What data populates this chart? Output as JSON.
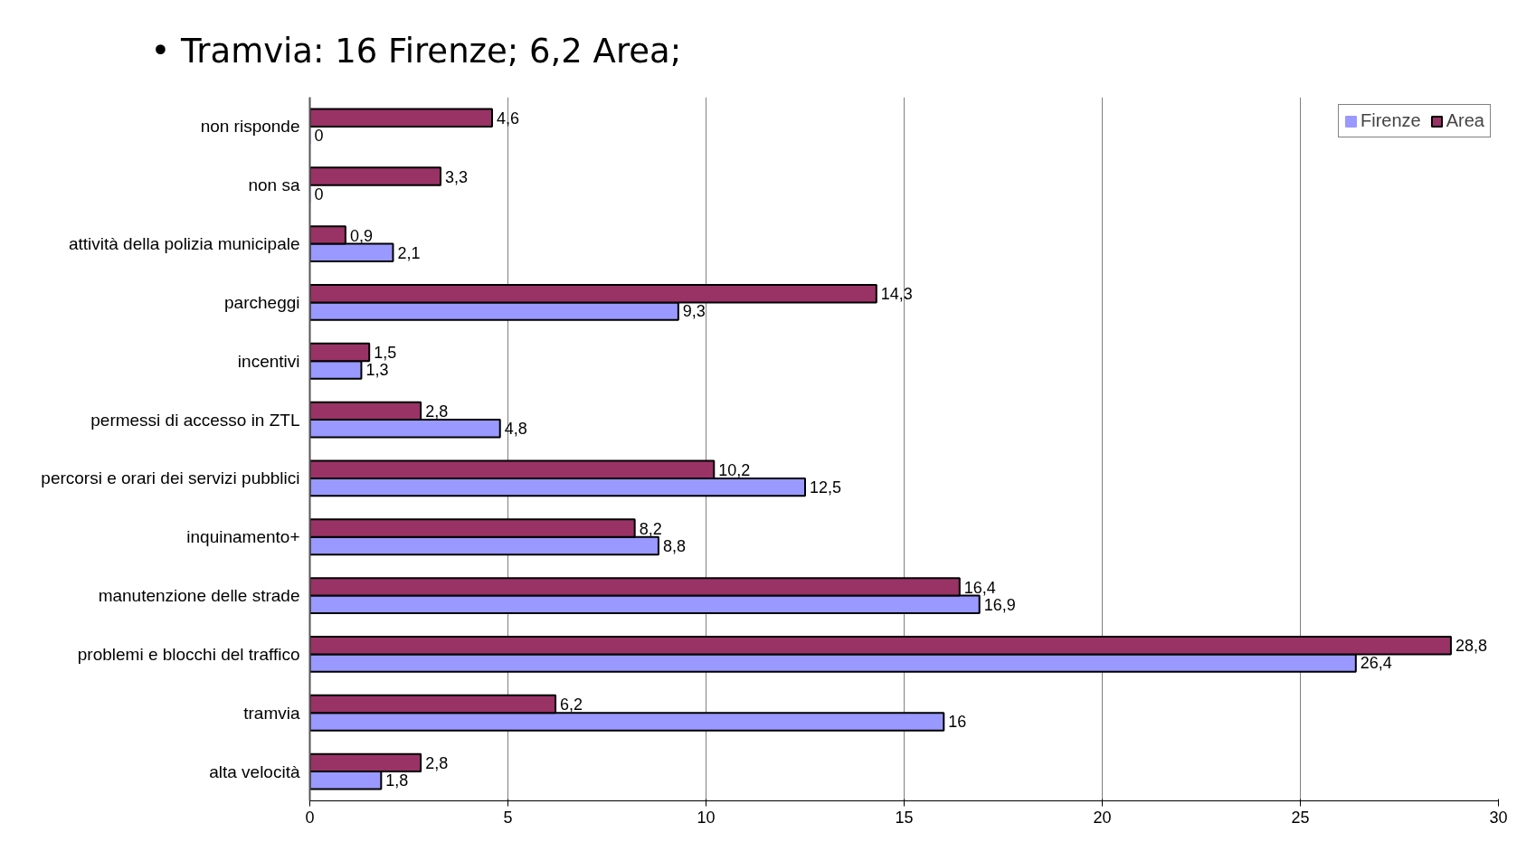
{
  "chart_data": {
    "type": "bar",
    "orientation": "horizontal",
    "title": "• Tramvia: 16 Firenze; 6,2 Area;",
    "categories": [
      "non risponde",
      "non sa",
      "attività della polizia municipale",
      "parcheggi",
      "incentivi",
      "permessi di accesso in ZTL",
      "percorsi e orari dei servizi pubblici",
      "inquinamento+",
      "manutenzione delle strade",
      "problemi e blocchi del traffico",
      "tramvia",
      "alta velocità"
    ],
    "series": [
      {
        "name": "Firenze",
        "color": "#9999ff",
        "values": [
          0,
          0,
          2.1,
          9.3,
          1.3,
          4.8,
          12.5,
          8.8,
          16.9,
          26.4,
          16,
          1.8
        ],
        "value_labels": [
          "0",
          "0",
          "2,1",
          "9,3",
          "1,3",
          "4,8",
          "12,5",
          "8,8",
          "16,9",
          "26,4",
          "16",
          "1,8"
        ]
      },
      {
        "name": "Area",
        "color": "#993366",
        "values": [
          4.6,
          3.3,
          0.9,
          14.3,
          1.5,
          2.8,
          10.2,
          8.2,
          16.4,
          28.8,
          6.2,
          2.8
        ],
        "value_labels": [
          "4,6",
          "3,3",
          "0,9",
          "14,3",
          "1,5",
          "2,8",
          "10,2",
          "8,2",
          "16,4",
          "28,8",
          "6,2",
          "2,8"
        ]
      }
    ],
    "xlim": [
      0,
      30
    ],
    "xticks": [
      0,
      5,
      10,
      15,
      20,
      25,
      30
    ],
    "grid": "x",
    "legend": "top right"
  }
}
